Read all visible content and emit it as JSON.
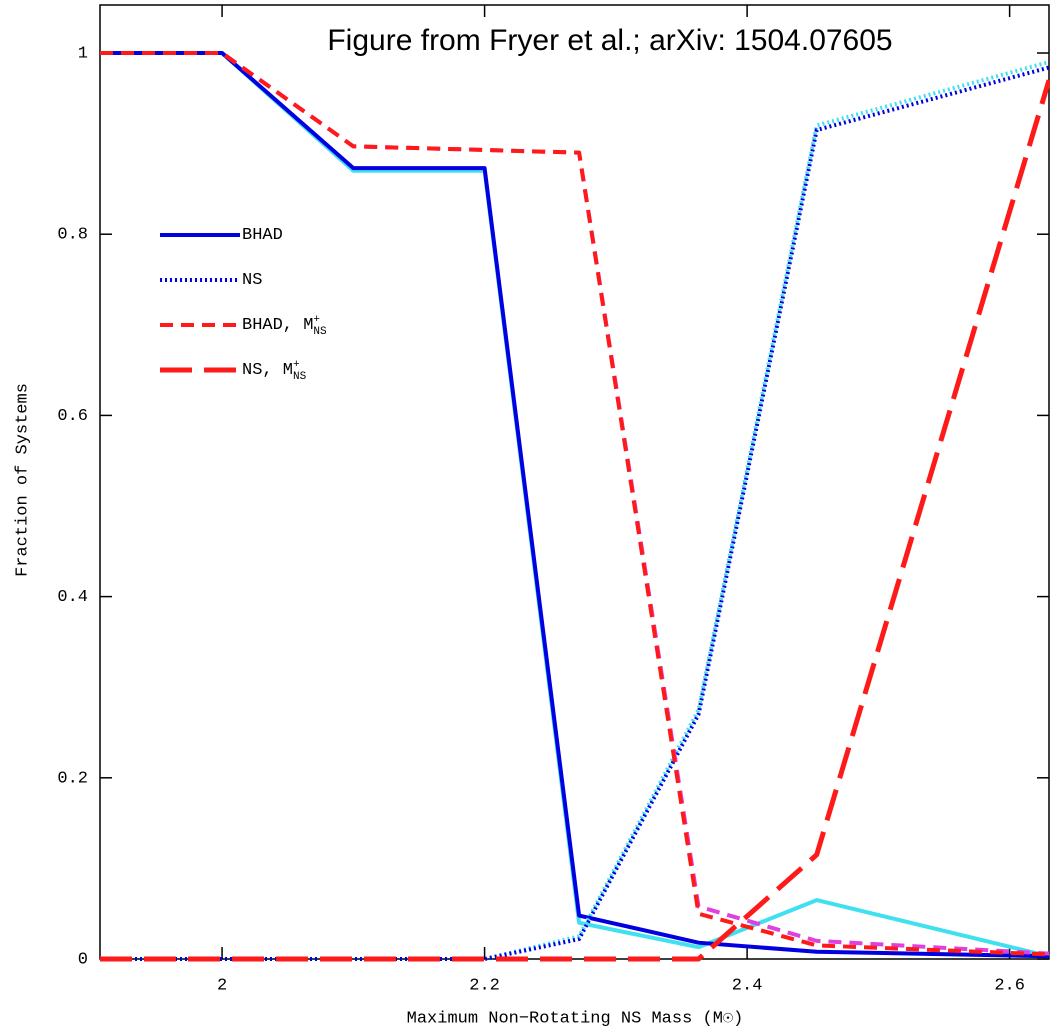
{
  "chart_data": {
    "type": "line",
    "annotation": "Figure from Fryer et al.; arXiv: 1504.07605",
    "x_label": "Maximum Non−Rotating NS Mass (M☉)",
    "y_label": "Fraction of Systems",
    "x": [
      1.907,
      2.0,
      2.1,
      2.2,
      2.272,
      2.363,
      2.453,
      2.63
    ],
    "xlim": [
      1.907,
      2.63
    ],
    "xticks": [
      2,
      2.2,
      2.4,
      2.6
    ],
    "ylim": [
      0,
      1.053
    ],
    "yticks": [
      0,
      0.2,
      0.4,
      0.6,
      0.8,
      1
    ],
    "series": [
      {
        "color": "#40e0f0",
        "style": "solid",
        "values": [
          1,
          1,
          0.87,
          0.87,
          0.04,
          0.013,
          0.065,
          0.003
        ]
      },
      {
        "name": "BHAD",
        "color": "#0000e0",
        "style": "solid",
        "values": [
          1,
          1,
          0.873,
          0.873,
          0.048,
          0.018,
          0.008,
          0.003
        ]
      },
      {
        "color": "#40e0f0",
        "style": "dotted",
        "values": [
          0,
          0,
          0,
          0,
          0.025,
          0.275,
          0.92,
          0.99
        ]
      },
      {
        "name": "NS",
        "color": "#0000e0",
        "style": "dotted",
        "values": [
          0,
          0,
          0,
          0,
          0.022,
          0.27,
          0.915,
          0.984
        ]
      },
      {
        "color": "#e040e0",
        "style": "dashed",
        "values": [
          1,
          1,
          0.897,
          0.893,
          0.89,
          0.058,
          0.02,
          0.006
        ]
      },
      {
        "name": "BHAD, M",
        "name_sup": "+",
        "name_sub": "NS",
        "color": "#ff1a1a",
        "style": "dashed",
        "values": [
          1,
          1,
          0.897,
          0.893,
          0.89,
          0.05,
          0.015,
          0.005
        ]
      },
      {
        "name": "NS, M",
        "name_sup": "+",
        "name_sub": "NS",
        "color": "#ff1a1a",
        "style": "longdash",
        "values": [
          0,
          0,
          0,
          0,
          0,
          0,
          0.115,
          0.97
        ]
      }
    ]
  }
}
